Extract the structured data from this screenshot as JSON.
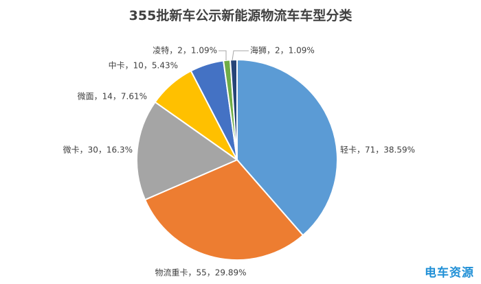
{
  "chart_data": {
    "type": "pie",
    "title": "355批新车公示新能源物流车车型分类",
    "slices": [
      {
        "name": "轻卡",
        "value": 71,
        "percent": "38.59%",
        "label": "轻卡，71，38.59%",
        "color": "#5b9bd5"
      },
      {
        "name": "物流重卡",
        "value": 55,
        "percent": "29.89%",
        "label": "物流重卡，55，29.89%",
        "color": "#ed7d31"
      },
      {
        "name": "微卡",
        "value": 30,
        "percent": "16.3%",
        "label": "微卡，30，16.3%",
        "color": "#a5a5a5"
      },
      {
        "name": "微面",
        "value": 14,
        "percent": "7.61%",
        "label": "微面，14，7.61%",
        "color": "#ffc000"
      },
      {
        "name": "中卡",
        "value": 10,
        "percent": "5.43%",
        "label": "中卡，10，5.43%",
        "color": "#4472c4"
      },
      {
        "name": "凌特",
        "value": 2,
        "percent": "1.09%",
        "label": "凌特，2，1.09%",
        "color": "#70ad47"
      },
      {
        "name": "海狮",
        "value": 2,
        "percent": "1.09%",
        "label": "海狮，2，1.09%",
        "color": "#264478"
      }
    ]
  },
  "watermark": "电车资源"
}
